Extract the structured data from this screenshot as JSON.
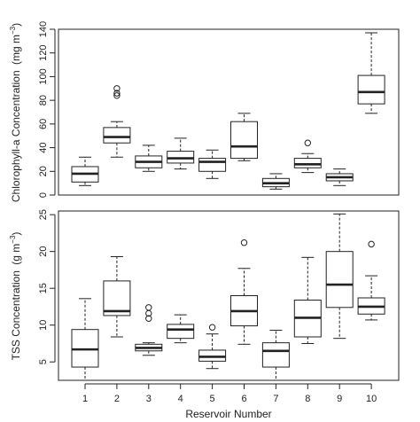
{
  "chart_data": [
    {
      "type": "boxplot",
      "ylabel_main": "Chlorophyll-a Concentration",
      "ylabel_unit_prefix": "(mg m",
      "ylabel_unit_exp": "−3",
      "ylabel_unit_suffix": ")",
      "ylim": [
        0,
        140
      ],
      "yticks": [
        0,
        20,
        40,
        60,
        80,
        100,
        120,
        140
      ],
      "categories": [
        "1",
        "2",
        "3",
        "4",
        "5",
        "6",
        "7",
        "8",
        "9",
        "10"
      ],
      "boxes": [
        {
          "whisker_low": 8,
          "q1": 11,
          "median": 18,
          "q3": 24,
          "whisker_high": 32,
          "outliers": []
        },
        {
          "whisker_low": 32,
          "q1": 44,
          "median": 49,
          "q3": 57,
          "whisker_high": 62,
          "outliers": [
            84,
            86,
            90
          ]
        },
        {
          "whisker_low": 20,
          "q1": 23,
          "median": 28,
          "q3": 33,
          "whisker_high": 42,
          "outliers": []
        },
        {
          "whisker_low": 22,
          "q1": 27,
          "median": 31,
          "q3": 37,
          "whisker_high": 48,
          "outliers": []
        },
        {
          "whisker_low": 14,
          "q1": 20,
          "median": 28,
          "q3": 31,
          "whisker_high": 38,
          "outliers": []
        },
        {
          "whisker_low": 29,
          "q1": 31,
          "median": 41,
          "q3": 62,
          "whisker_high": 69,
          "outliers": []
        },
        {
          "whisker_low": 5,
          "q1": 7,
          "median": 10,
          "q3": 14,
          "whisker_high": 18,
          "outliers": []
        },
        {
          "whisker_low": 19,
          "q1": 23,
          "median": 26,
          "q3": 31,
          "whisker_high": 35,
          "outliers": [
            44
          ]
        },
        {
          "whisker_low": 8,
          "q1": 12,
          "median": 15,
          "q3": 18,
          "whisker_high": 22,
          "outliers": []
        },
        {
          "whisker_low": 69,
          "q1": 77,
          "median": 87,
          "q3": 101,
          "whisker_high": 137,
          "outliers": []
        }
      ]
    },
    {
      "type": "boxplot",
      "ylabel_main": "TSS Concentration",
      "ylabel_unit_prefix": "(g m",
      "ylabel_unit_exp": "−3",
      "ylabel_unit_suffix": ")",
      "xlabel": "Reservoir Number",
      "ylim": [
        2.5,
        25.5
      ],
      "yticks": [
        5,
        10,
        15,
        20,
        25
      ],
      "categories": [
        "1",
        "2",
        "3",
        "4",
        "5",
        "6",
        "7",
        "8",
        "9",
        "10"
      ],
      "boxes": [
        {
          "whisker_low": 2.5,
          "q1": 4.3,
          "median": 6.7,
          "q3": 9.4,
          "whisker_high": 13.6,
          "outliers": []
        },
        {
          "whisker_low": 8.4,
          "q1": 11.3,
          "median": 11.9,
          "q3": 16.0,
          "whisker_high": 19.3,
          "outliers": []
        },
        {
          "whisker_low": 5.9,
          "q1": 6.5,
          "median": 6.9,
          "q3": 7.4,
          "whisker_high": 7.6,
          "outliers": [
            10.9,
            11.6,
            12.4
          ]
        },
        {
          "whisker_low": 7.6,
          "q1": 8.2,
          "median": 9.4,
          "q3": 10.1,
          "whisker_high": 11.4,
          "outliers": []
        },
        {
          "whisker_low": 4.1,
          "q1": 5.1,
          "median": 5.7,
          "q3": 6.6,
          "whisker_high": 8.8,
          "outliers": [
            9.7
          ]
        },
        {
          "whisker_low": 7.4,
          "q1": 9.9,
          "median": 11.9,
          "q3": 14.0,
          "whisker_high": 17.7,
          "outliers": [
            21.2
          ]
        },
        {
          "whisker_low": 2.5,
          "q1": 4.3,
          "median": 6.5,
          "q3": 7.6,
          "whisker_high": 9.3,
          "outliers": []
        },
        {
          "whisker_low": 7.5,
          "q1": 8.4,
          "median": 11.0,
          "q3": 13.4,
          "whisker_high": 19.2,
          "outliers": []
        },
        {
          "whisker_low": 8.2,
          "q1": 12.4,
          "median": 15.5,
          "q3": 20.0,
          "whisker_high": 25.1,
          "outliers": []
        },
        {
          "whisker_low": 10.7,
          "q1": 11.5,
          "median": 12.5,
          "q3": 13.7,
          "whisker_high": 16.7,
          "outliers": [
            21.0
          ]
        }
      ]
    }
  ],
  "colors": {
    "ink": "#222222",
    "box_fill": "#ffffff",
    "background": "#ffffff"
  }
}
